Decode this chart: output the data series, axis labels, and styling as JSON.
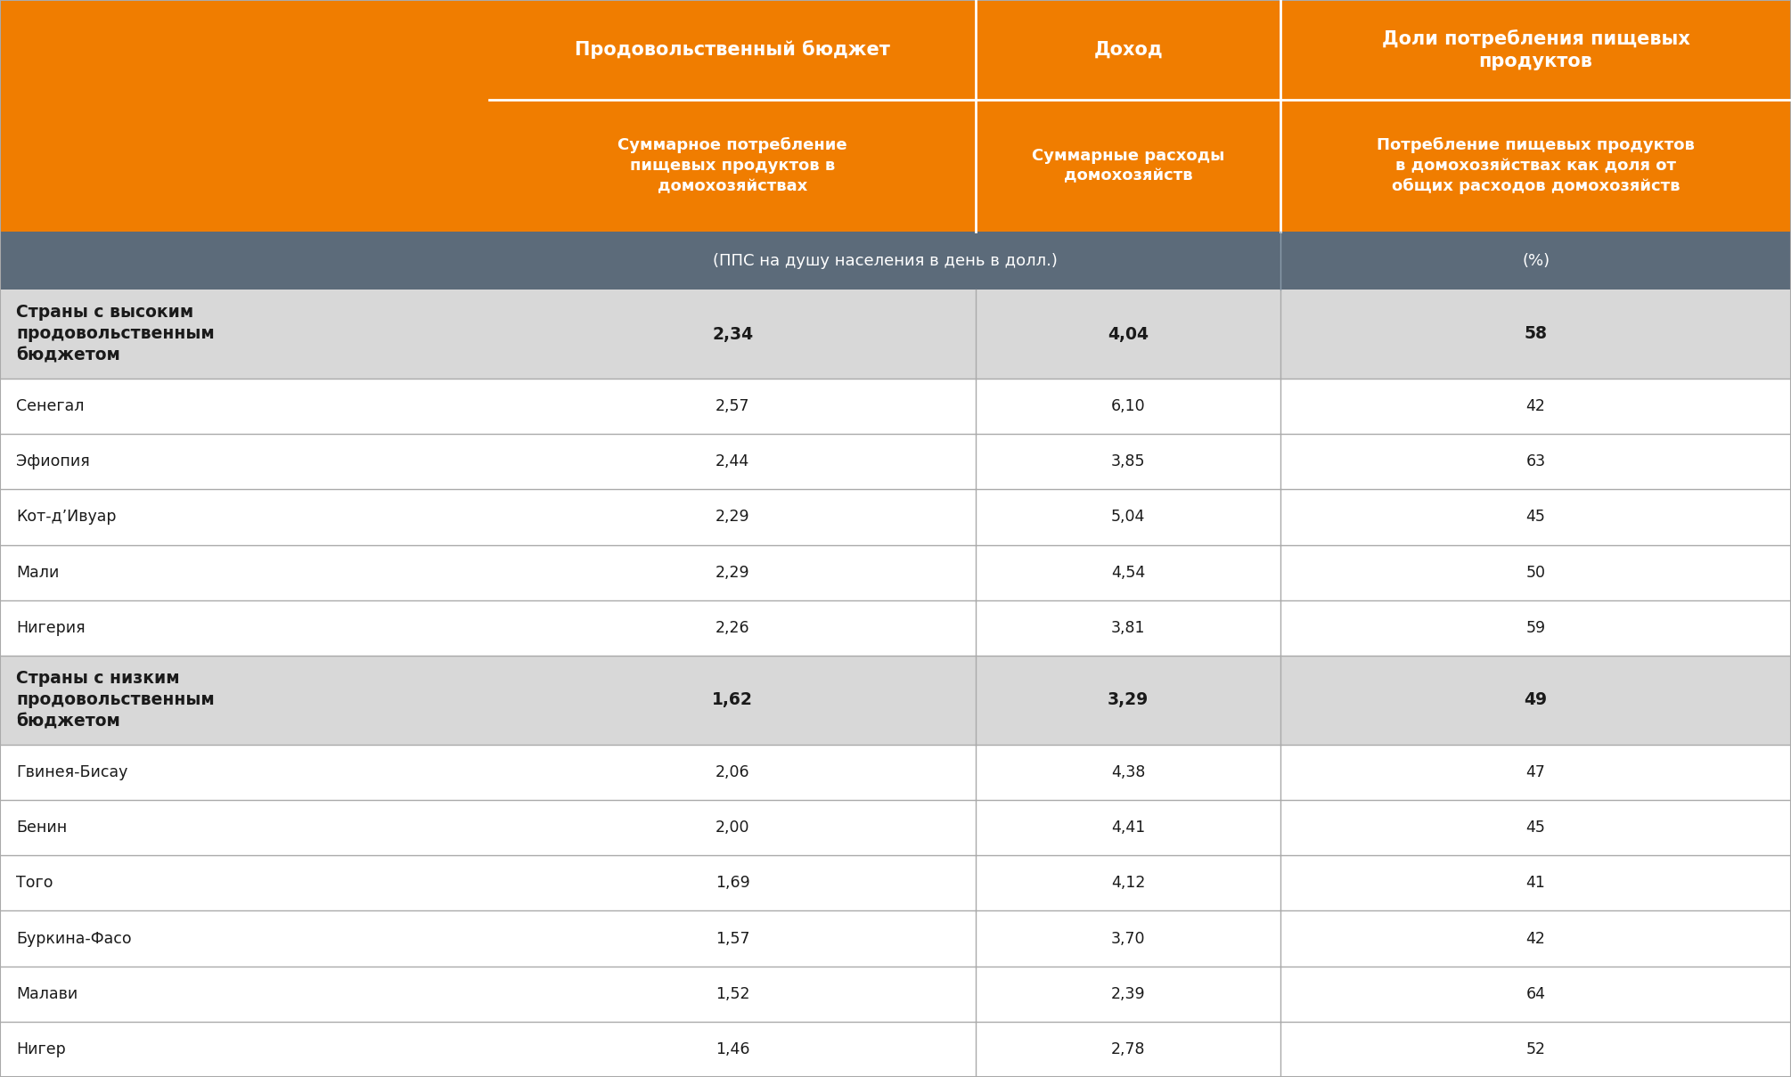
{
  "orange_color": "#F07D00",
  "dark_unit_bg": "#5C6B7A",
  "group_row_bg": "#D8D8D8",
  "white_bg": "#FFFFFF",
  "text_dark": "#1A1A1A",
  "text_white": "#FFFFFF",
  "line_color": "#AAAAAA",
  "header1_text": "Продовольственный бюджет",
  "header2_text": "Доход",
  "header3_text": "Доли потребления пищевых\nпродуктов",
  "subheader1_text": "Суммарное потребление\nпищевых продуктов в\nдомохозяйствах",
  "subheader2_text": "Суммарные расходы\nдомохозяйств",
  "subheader3_text": "Потребление пищевых продуктов\nв домохозяйствах как доля от\nобщих расходов домохозяйств",
  "unit_row1": "(ППС на душу населения в день в долл.)",
  "unit_row2": "(%)",
  "rows": [
    {
      "label": "Страны с высоким\nпродовольственным\nбюджетом",
      "v1": "2,34",
      "v2": "4,04",
      "v3": "58",
      "is_group": true
    },
    {
      "label": "Сенегал",
      "v1": "2,57",
      "v2": "6,10",
      "v3": "42",
      "is_group": false
    },
    {
      "label": "Эфиопия",
      "v1": "2,44",
      "v2": "3,85",
      "v3": "63",
      "is_group": false
    },
    {
      "label": "Кот-д’Ивуар",
      "v1": "2,29",
      "v2": "5,04",
      "v3": "45",
      "is_group": false
    },
    {
      "label": "Мали",
      "v1": "2,29",
      "v2": "4,54",
      "v3": "50",
      "is_group": false
    },
    {
      "label": "Нигерия",
      "v1": "2,26",
      "v2": "3,81",
      "v3": "59",
      "is_group": false
    },
    {
      "label": "Страны с низким\nпродовольственным\nбюджетом",
      "v1": "1,62",
      "v2": "3,29",
      "v3": "49",
      "is_group": true
    },
    {
      "label": "Гвинея-Бисау",
      "v1": "2,06",
      "v2": "4,38",
      "v3": "47",
      "is_group": false
    },
    {
      "label": "Бенин",
      "v1": "2,00",
      "v2": "4,41",
      "v3": "45",
      "is_group": false
    },
    {
      "label": "Того",
      "v1": "1,69",
      "v2": "4,12",
      "v3": "41",
      "is_group": false
    },
    {
      "label": "Буркина-Фасо",
      "v1": "1,57",
      "v2": "3,70",
      "v3": "42",
      "is_group": false
    },
    {
      "label": "Малави",
      "v1": "1,52",
      "v2": "2,39",
      "v3": "64",
      "is_group": false
    },
    {
      "label": "Нигер",
      "v1": "1,46",
      "v2": "2,78",
      "v3": "52",
      "is_group": false
    }
  ],
  "figsize": [
    20.1,
    12.09
  ],
  "dpi": 100
}
